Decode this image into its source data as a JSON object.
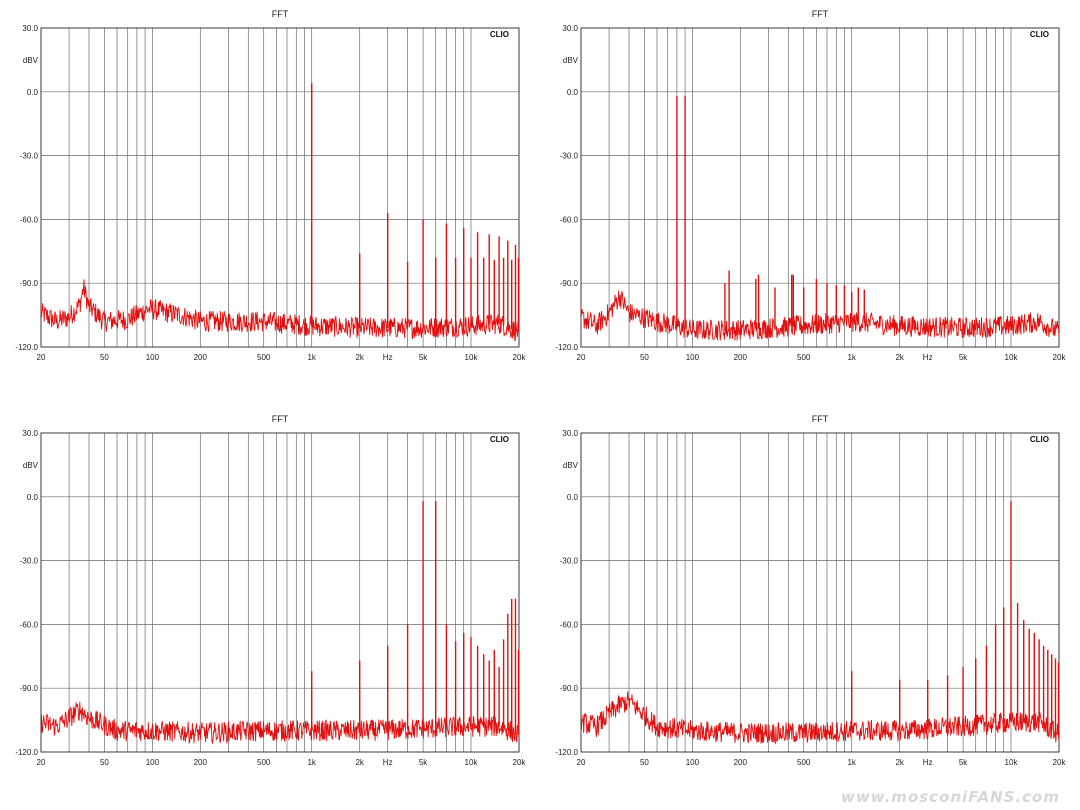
{
  "watermark": "www.mosconiFANS.com",
  "colors": {
    "trace": "#e01010",
    "grid": "#6a6a6a",
    "frame": "#3a3a3a"
  },
  "chart_data": [
    {
      "type": "line",
      "title": "FFT",
      "brand": "CLIO",
      "xlabel": "Hz",
      "ylabel": "dBV",
      "xscale": "log",
      "xlim": [
        20,
        20000
      ],
      "ylim": [
        -120,
        30
      ],
      "yticks": [
        "30.0",
        "0.0",
        "-30.0",
        "-60.0",
        "-90.0",
        "-120.0"
      ],
      "xticks": [
        "20",
        "50",
        "100",
        "200",
        "500",
        "1k",
        "2k",
        "Hz",
        "5k",
        "10k",
        "20k"
      ],
      "noise": [
        [
          20,
          -104
        ],
        [
          25,
          -108
        ],
        [
          30,
          -106
        ],
        [
          35,
          -100
        ],
        [
          37,
          -92
        ],
        [
          40,
          -101
        ],
        [
          50,
          -108
        ],
        [
          70,
          -107
        ],
        [
          95,
          -102
        ],
        [
          150,
          -105
        ],
        [
          200,
          -108
        ],
        [
          500,
          -108
        ],
        [
          1000,
          -110
        ],
        [
          2000,
          -111
        ],
        [
          5000,
          -111
        ],
        [
          10000,
          -110
        ],
        [
          15000,
          -109
        ],
        [
          20000,
          -113
        ]
      ],
      "peaks": [
        [
          1000,
          4
        ],
        [
          2000,
          -76
        ],
        [
          3000,
          -57
        ],
        [
          4000,
          -80
        ],
        [
          5000,
          -60
        ],
        [
          6000,
          -78
        ],
        [
          7000,
          -62
        ],
        [
          8000,
          -78
        ],
        [
          9000,
          -64
        ],
        [
          10000,
          -78
        ],
        [
          11000,
          -66
        ],
        [
          12000,
          -78
        ],
        [
          13000,
          -67
        ],
        [
          14000,
          -79
        ],
        [
          15000,
          -68
        ],
        [
          16000,
          -78
        ],
        [
          17000,
          -70
        ],
        [
          18000,
          -79
        ],
        [
          19000,
          -72
        ],
        [
          20000,
          -78
        ]
      ]
    },
    {
      "type": "line",
      "title": "FFT",
      "brand": "CLIO",
      "xlabel": "Hz",
      "ylabel": "dBV",
      "xscale": "log",
      "xlim": [
        20,
        20000
      ],
      "ylim": [
        -120,
        30
      ],
      "yticks": [
        "30.0",
        "0.0",
        "-30.0",
        "-60.0",
        "-90.0",
        "-120.0"
      ],
      "xticks": [
        "20",
        "50",
        "100",
        "200",
        "500",
        "1k",
        "2k",
        "Hz",
        "5k",
        "10k",
        "20k"
      ],
      "noise": [
        [
          20,
          -106
        ],
        [
          25,
          -110
        ],
        [
          30,
          -104
        ],
        [
          35,
          -96
        ],
        [
          40,
          -104
        ],
        [
          60,
          -108
        ],
        [
          100,
          -112
        ],
        [
          200,
          -112
        ],
        [
          500,
          -110
        ],
        [
          1000,
          -108
        ],
        [
          2000,
          -110
        ],
        [
          5000,
          -111
        ],
        [
          10000,
          -110
        ],
        [
          15000,
          -108
        ],
        [
          20000,
          -113
        ]
      ],
      "peaks": [
        [
          80,
          -2
        ],
        [
          90,
          -2
        ],
        [
          160,
          -90
        ],
        [
          170,
          -84
        ],
        [
          250,
          -88
        ],
        [
          260,
          -86
        ],
        [
          330,
          -92
        ],
        [
          420,
          -86
        ],
        [
          430,
          -86
        ],
        [
          500,
          -92
        ],
        [
          600,
          -88
        ],
        [
          700,
          -90
        ],
        [
          800,
          -91
        ],
        [
          900,
          -91
        ],
        [
          1000,
          -94
        ],
        [
          1100,
          -92
        ],
        [
          1200,
          -93
        ]
      ]
    },
    {
      "type": "line",
      "title": "FFT",
      "brand": "CLIO",
      "xlabel": "Hz",
      "ylabel": "dBV",
      "xscale": "log",
      "xlim": [
        20,
        20000
      ],
      "ylim": [
        -120,
        30
      ],
      "yticks": [
        "30.0",
        "0.0",
        "-30.0",
        "-60.0",
        "-90.0",
        "-120.0"
      ],
      "xticks": [
        "20",
        "50",
        "100",
        "200",
        "500",
        "1k",
        "2k",
        "Hz",
        "5k",
        "10k",
        "20k"
      ],
      "noise": [
        [
          20,
          -106
        ],
        [
          25,
          -108
        ],
        [
          30,
          -104
        ],
        [
          35,
          -100
        ],
        [
          40,
          -104
        ],
        [
          60,
          -110
        ],
        [
          100,
          -110
        ],
        [
          200,
          -111
        ],
        [
          500,
          -110
        ],
        [
          1000,
          -110
        ],
        [
          2000,
          -110
        ],
        [
          5000,
          -109
        ],
        [
          10000,
          -108
        ],
        [
          15000,
          -108
        ],
        [
          20000,
          -112
        ]
      ],
      "peaks": [
        [
          1000,
          -82
        ],
        [
          2000,
          -77
        ],
        [
          3000,
          -70
        ],
        [
          4000,
          -60
        ],
        [
          5000,
          -2
        ],
        [
          6000,
          -2
        ],
        [
          7000,
          -60
        ],
        [
          8000,
          -68
        ],
        [
          9000,
          -64
        ],
        [
          10000,
          -66
        ],
        [
          11000,
          -70
        ],
        [
          12000,
          -74
        ],
        [
          13000,
          -77
        ],
        [
          14000,
          -72
        ],
        [
          15000,
          -80
        ],
        [
          16000,
          -67
        ],
        [
          17000,
          -55
        ],
        [
          18000,
          -48
        ],
        [
          19000,
          -48
        ],
        [
          20000,
          -72
        ]
      ]
    },
    {
      "type": "line",
      "title": "FFT",
      "brand": "CLIO",
      "xlabel": "Hz",
      "ylabel": "dBV",
      "xscale": "log",
      "xlim": [
        20,
        20000
      ],
      "ylim": [
        -120,
        30
      ],
      "yticks": [
        "30.0",
        "0.0",
        "-30.0",
        "-60.0",
        "-90.0",
        "-120.0"
      ],
      "xticks": [
        "20",
        "50",
        "100",
        "200",
        "500",
        "1k",
        "2k",
        "Hz",
        "5k",
        "10k",
        "20k"
      ],
      "noise": [
        [
          20,
          -106
        ],
        [
          25,
          -108
        ],
        [
          30,
          -102
        ],
        [
          35,
          -98
        ],
        [
          40,
          -96
        ],
        [
          60,
          -108
        ],
        [
          100,
          -110
        ],
        [
          200,
          -111
        ],
        [
          500,
          -111
        ],
        [
          1000,
          -110
        ],
        [
          2000,
          -110
        ],
        [
          5000,
          -108
        ],
        [
          10000,
          -106
        ],
        [
          15000,
          -106
        ],
        [
          20000,
          -112
        ]
      ],
      "peaks": [
        [
          1000,
          -82
        ],
        [
          2000,
          -86
        ],
        [
          3000,
          -86
        ],
        [
          4000,
          -84
        ],
        [
          5000,
          -80
        ],
        [
          6000,
          -76
        ],
        [
          7000,
          -70
        ],
        [
          8000,
          -60
        ],
        [
          9000,
          -52
        ],
        [
          10000,
          -2
        ],
        [
          11000,
          -50
        ],
        [
          12000,
          -58
        ],
        [
          13000,
          -62
        ],
        [
          14000,
          -64
        ],
        [
          15000,
          -67
        ],
        [
          16000,
          -70
        ],
        [
          17000,
          -72
        ],
        [
          18000,
          -74
        ],
        [
          19000,
          -76
        ],
        [
          20000,
          -78
        ]
      ]
    }
  ]
}
